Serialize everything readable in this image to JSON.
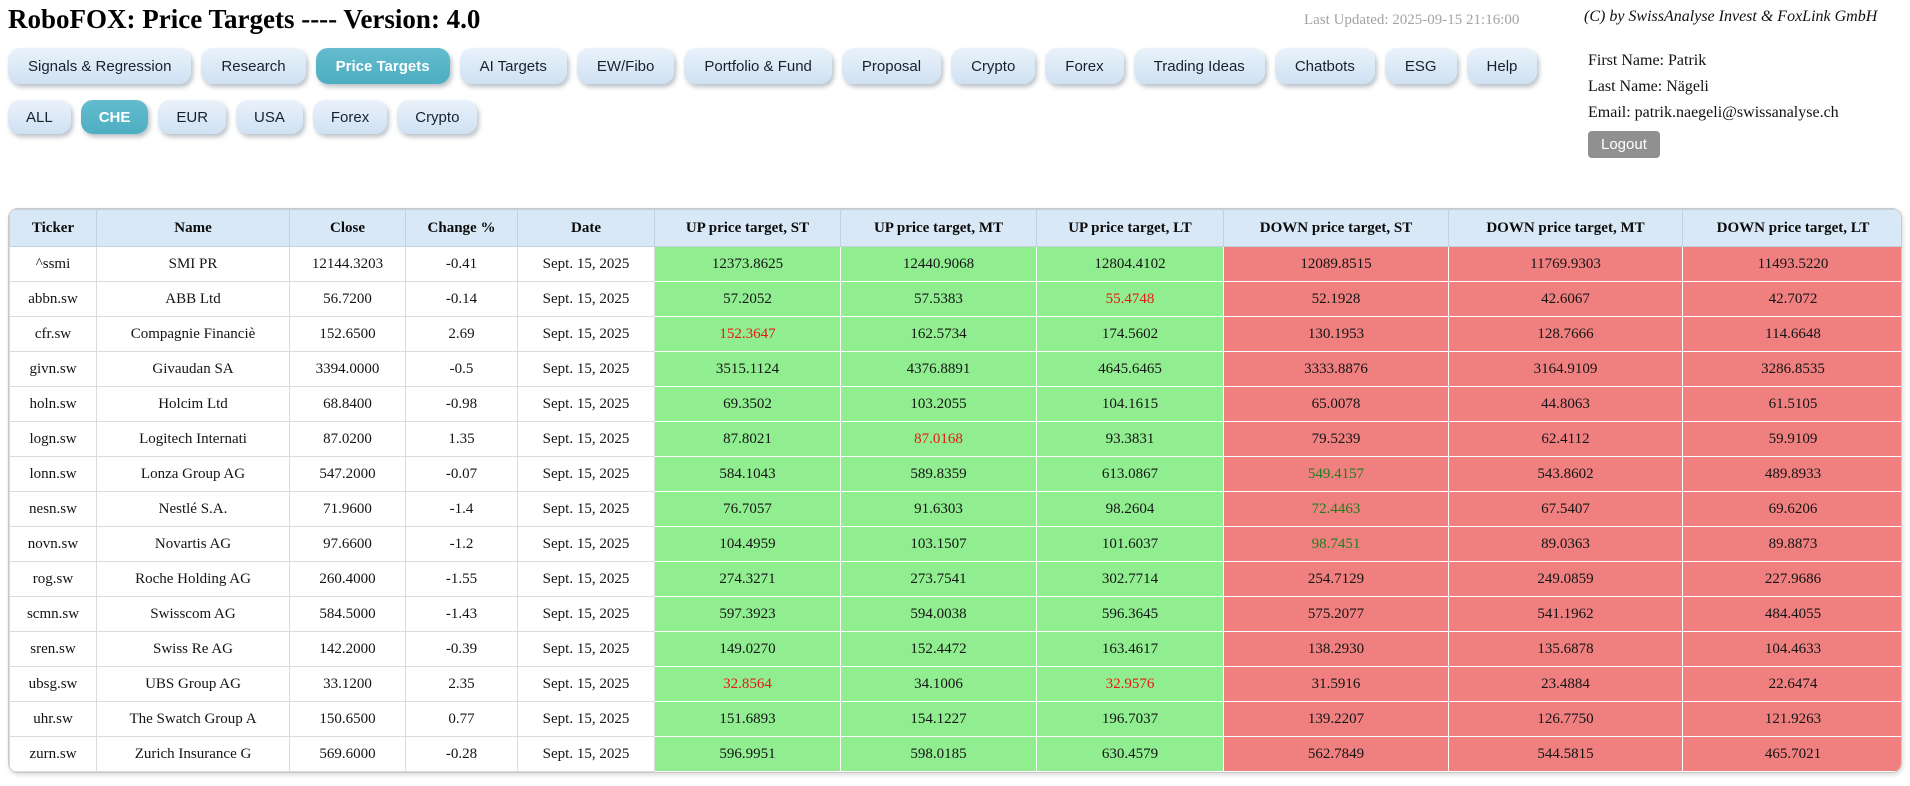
{
  "header": {
    "title": "RoboFOX: Price Targets ---- Version: 4.0",
    "last_updated": "Last Updated: 2025-09-15 21:16:00",
    "copyright": "(C) by SwissAnalyse Invest & FoxLink GmbH"
  },
  "user": {
    "first_name": "First Name: Patrik",
    "last_name": "Last Name: Nägeli",
    "email": "Email: patrik.naegeli@swissanalyse.ch",
    "logout_label": "Logout"
  },
  "nav": {
    "items": [
      {
        "label": "Signals & Regression",
        "active": false
      },
      {
        "label": "Research",
        "active": false
      },
      {
        "label": "Price Targets",
        "active": true
      },
      {
        "label": "AI Targets",
        "active": false
      },
      {
        "label": "EW/Fibo",
        "active": false
      },
      {
        "label": "Portfolio & Fund",
        "active": false
      },
      {
        "label": "Proposal",
        "active": false
      },
      {
        "label": "Crypto",
        "active": false
      },
      {
        "label": "Forex",
        "active": false
      },
      {
        "label": "Trading Ideas",
        "active": false
      },
      {
        "label": "Chatbots",
        "active": false
      },
      {
        "label": "ESG",
        "active": false
      },
      {
        "label": "Help",
        "active": false
      }
    ]
  },
  "filters": {
    "items": [
      {
        "label": "ALL",
        "active": false
      },
      {
        "label": "CHE",
        "active": true
      },
      {
        "label": "EUR",
        "active": false
      },
      {
        "label": "USA",
        "active": false
      },
      {
        "label": "Forex",
        "active": false
      },
      {
        "label": "Crypto",
        "active": false
      }
    ]
  },
  "table": {
    "columns": [
      "Ticker",
      "Name",
      "Close",
      "Change %",
      "Date",
      "UP price target, ST",
      "UP price target, MT",
      "UP price target, LT",
      "DOWN price target, ST",
      "DOWN price target, MT",
      "DOWN price target, LT"
    ],
    "rows": [
      {
        "cells": [
          "^ssmi",
          "SMI PR",
          "12144.3203",
          "-0.41",
          "Sept. 15, 2025"
        ],
        "targets": [
          {
            "v": "12373.8625"
          },
          {
            "v": "12440.9068"
          },
          {
            "v": "12804.4102"
          },
          {
            "v": "12089.8515"
          },
          {
            "v": "11769.9303"
          },
          {
            "v": "11493.5220"
          }
        ]
      },
      {
        "cells": [
          "abbn.sw",
          "ABB Ltd",
          "56.7200",
          "-0.14",
          "Sept. 15, 2025"
        ],
        "targets": [
          {
            "v": "57.2052"
          },
          {
            "v": "57.5383"
          },
          {
            "v": "55.4748",
            "c": "red"
          },
          {
            "v": "52.1928"
          },
          {
            "v": "42.6067"
          },
          {
            "v": "42.7072"
          }
        ]
      },
      {
        "cells": [
          "cfr.sw",
          "Compagnie Financiè",
          "152.6500",
          "2.69",
          "Sept. 15, 2025"
        ],
        "targets": [
          {
            "v": "152.3647",
            "c": "red"
          },
          {
            "v": "162.5734"
          },
          {
            "v": "174.5602"
          },
          {
            "v": "130.1953"
          },
          {
            "v": "128.7666"
          },
          {
            "v": "114.6648"
          }
        ]
      },
      {
        "cells": [
          "givn.sw",
          "Givaudan SA",
          "3394.0000",
          "-0.5",
          "Sept. 15, 2025"
        ],
        "targets": [
          {
            "v": "3515.1124"
          },
          {
            "v": "4376.8891"
          },
          {
            "v": "4645.6465"
          },
          {
            "v": "3333.8876"
          },
          {
            "v": "3164.9109"
          },
          {
            "v": "3286.8535"
          }
        ]
      },
      {
        "cells": [
          "holn.sw",
          "Holcim Ltd",
          "68.8400",
          "-0.98",
          "Sept. 15, 2025"
        ],
        "targets": [
          {
            "v": "69.3502"
          },
          {
            "v": "103.2055"
          },
          {
            "v": "104.1615"
          },
          {
            "v": "65.0078"
          },
          {
            "v": "44.8063"
          },
          {
            "v": "61.5105"
          }
        ]
      },
      {
        "cells": [
          "logn.sw",
          "Logitech Internati",
          "87.0200",
          "1.35",
          "Sept. 15, 2025"
        ],
        "targets": [
          {
            "v": "87.8021"
          },
          {
            "v": "87.0168",
            "c": "red"
          },
          {
            "v": "93.3831"
          },
          {
            "v": "79.5239"
          },
          {
            "v": "62.4112"
          },
          {
            "v": "59.9109"
          }
        ]
      },
      {
        "cells": [
          "lonn.sw",
          "Lonza Group AG",
          "547.2000",
          "-0.07",
          "Sept. 15, 2025"
        ],
        "targets": [
          {
            "v": "584.1043"
          },
          {
            "v": "589.8359"
          },
          {
            "v": "613.0867"
          },
          {
            "v": "549.4157",
            "c": "green"
          },
          {
            "v": "543.8602"
          },
          {
            "v": "489.8933"
          }
        ]
      },
      {
        "cells": [
          "nesn.sw",
          "Nestlé S.A.",
          "71.9600",
          "-1.4",
          "Sept. 15, 2025"
        ],
        "targets": [
          {
            "v": "76.7057"
          },
          {
            "v": "91.6303"
          },
          {
            "v": "98.2604"
          },
          {
            "v": "72.4463",
            "c": "green"
          },
          {
            "v": "67.5407"
          },
          {
            "v": "69.6206"
          }
        ]
      },
      {
        "cells": [
          "novn.sw",
          "Novartis AG",
          "97.6600",
          "-1.2",
          "Sept. 15, 2025"
        ],
        "targets": [
          {
            "v": "104.4959"
          },
          {
            "v": "103.1507"
          },
          {
            "v": "101.6037"
          },
          {
            "v": "98.7451",
            "c": "green"
          },
          {
            "v": "89.0363"
          },
          {
            "v": "89.8873"
          }
        ]
      },
      {
        "cells": [
          "rog.sw",
          "Roche Holding AG",
          "260.4000",
          "-1.55",
          "Sept. 15, 2025"
        ],
        "targets": [
          {
            "v": "274.3271"
          },
          {
            "v": "273.7541"
          },
          {
            "v": "302.7714"
          },
          {
            "v": "254.7129"
          },
          {
            "v": "249.0859"
          },
          {
            "v": "227.9686"
          }
        ]
      },
      {
        "cells": [
          "scmn.sw",
          "Swisscom AG",
          "584.5000",
          "-1.43",
          "Sept. 15, 2025"
        ],
        "targets": [
          {
            "v": "597.3923"
          },
          {
            "v": "594.0038"
          },
          {
            "v": "596.3645"
          },
          {
            "v": "575.2077"
          },
          {
            "v": "541.1962"
          },
          {
            "v": "484.4055"
          }
        ]
      },
      {
        "cells": [
          "sren.sw",
          "Swiss Re AG",
          "142.2000",
          "-0.39",
          "Sept. 15, 2025"
        ],
        "targets": [
          {
            "v": "149.0270"
          },
          {
            "v": "152.4472"
          },
          {
            "v": "163.4617"
          },
          {
            "v": "138.2930"
          },
          {
            "v": "135.6878"
          },
          {
            "v": "104.4633"
          }
        ]
      },
      {
        "cells": [
          "ubsg.sw",
          "UBS Group AG",
          "33.1200",
          "2.35",
          "Sept. 15, 2025"
        ],
        "targets": [
          {
            "v": "32.8564",
            "c": "red"
          },
          {
            "v": "34.1006"
          },
          {
            "v": "32.9576",
            "c": "red"
          },
          {
            "v": "31.5916"
          },
          {
            "v": "23.4884"
          },
          {
            "v": "22.6474"
          }
        ]
      },
      {
        "cells": [
          "uhr.sw",
          "The Swatch Group A",
          "150.6500",
          "0.77",
          "Sept. 15, 2025"
        ],
        "targets": [
          {
            "v": "151.6893"
          },
          {
            "v": "154.1227"
          },
          {
            "v": "196.7037"
          },
          {
            "v": "139.2207"
          },
          {
            "v": "126.7750"
          },
          {
            "v": "121.9263"
          }
        ]
      },
      {
        "cells": [
          "zurn.sw",
          "Zurich Insurance G",
          "569.6000",
          "-0.28",
          "Sept. 15, 2025"
        ],
        "targets": [
          {
            "v": "596.9951"
          },
          {
            "v": "598.0185"
          },
          {
            "v": "630.4579"
          },
          {
            "v": "562.7849"
          },
          {
            "v": "544.5815"
          },
          {
            "v": "465.7021"
          }
        ]
      }
    ]
  },
  "colors": {
    "active_tab": "#4daec1",
    "active_tab_highlight": "#63bccd",
    "up_cell_bg": "#90ee90",
    "down_cell_bg": "#f08080",
    "alert_text_red": "#e8190f",
    "alert_text_green": "#1e7e1e",
    "logout_bg": "#909090"
  }
}
